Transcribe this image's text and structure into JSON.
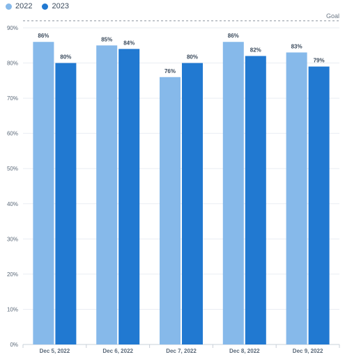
{
  "chart_data": {
    "type": "bar",
    "categories": [
      "Dec 5, 2022",
      "Dec 6, 2022",
      "Dec 7, 2022",
      "Dec 8, 2022",
      "Dec 9, 2022"
    ],
    "series": [
      {
        "name": "2022",
        "values": [
          86,
          85,
          76,
          86,
          83
        ],
        "color": "#86b9ea"
      },
      {
        "name": "2023",
        "values": [
          80,
          84,
          80,
          82,
          79
        ],
        "color": "#2179d1"
      }
    ],
    "data_labels": [
      [
        "86%",
        "85%",
        "76%",
        "86%",
        "83%"
      ],
      [
        "80%",
        "84%",
        "80%",
        "82%",
        "79%"
      ]
    ],
    "y_ticks": [
      "0%",
      "10%",
      "20%",
      "30%",
      "40%",
      "50%",
      "60%",
      "70%",
      "80%",
      "90%"
    ],
    "ylim": [
      0,
      90
    ],
    "goal": {
      "label": "Goal",
      "value": 92
    },
    "legend": "top-left",
    "grid": true
  }
}
